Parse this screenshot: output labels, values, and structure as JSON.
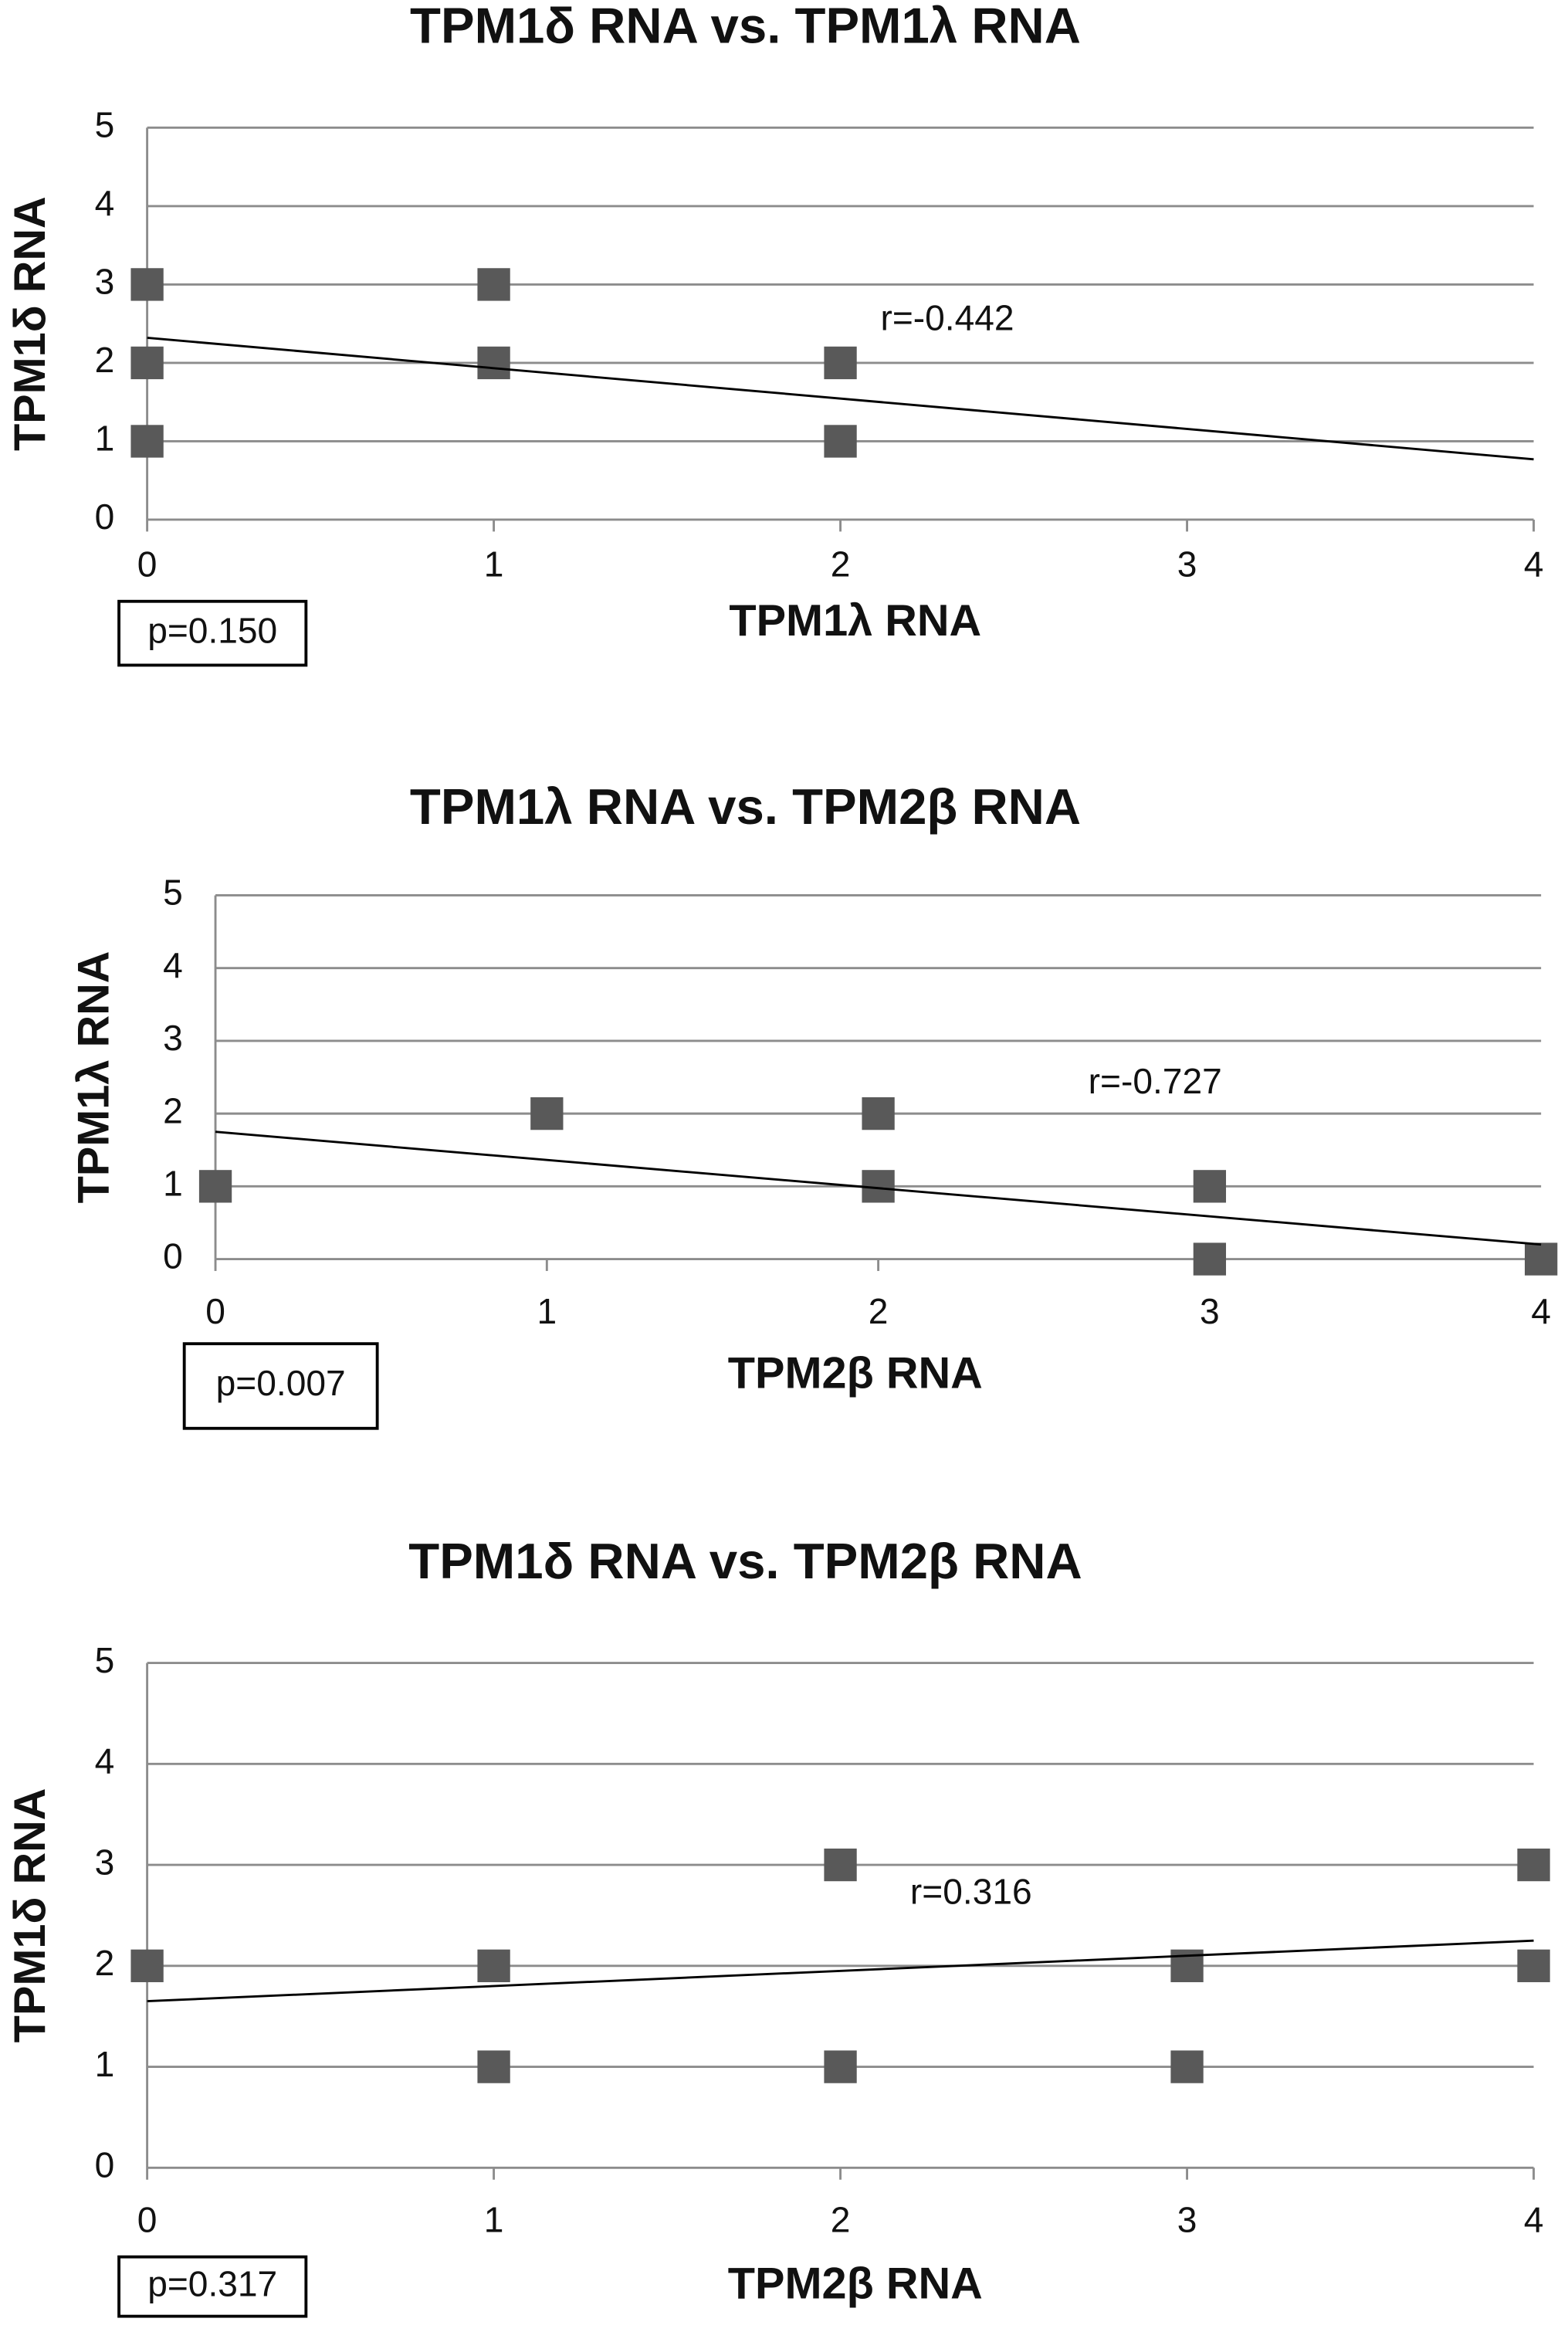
{
  "chart_data": [
    {
      "type": "scatter",
      "title": "TPM1δ RNA vs. TPM1λ RNA",
      "x_label": "TPM1λ RNA",
      "y_label": "TPM1δ RNA",
      "x": [
        0,
        0,
        0,
        1,
        1,
        2,
        2
      ],
      "y": [
        3,
        2,
        1,
        3,
        2,
        2,
        1
      ],
      "color": "#595959",
      "trendline": {
        "x": [
          0,
          4
        ],
        "y": [
          2.32,
          0.77
        ]
      },
      "annotations": [
        "r=-0.442",
        "p=0.150"
      ],
      "xlim": [
        0,
        4
      ],
      "xticks": [
        0,
        1,
        2,
        3,
        4
      ],
      "ylim": [
        0,
        5
      ],
      "yticks": [
        0,
        1,
        2,
        3,
        4,
        5
      ],
      "grid": true
    },
    {
      "type": "scatter",
      "title": "TPM1λ RNA vs. TPM2β RNA",
      "x_label": "TPM2β RNA",
      "y_label": "TPM1λ RNA",
      "x": [
        0,
        1,
        2,
        2,
        3,
        3,
        4
      ],
      "y": [
        1,
        2,
        2,
        1,
        1,
        0,
        0
      ],
      "color": "#595959",
      "trendline": {
        "x": [
          0,
          4
        ],
        "y": [
          1.75,
          0.2
        ]
      },
      "annotations": [
        "r=-0.727",
        "p=0.007"
      ],
      "xlim": [
        0,
        4
      ],
      "xticks": [
        0,
        1,
        2,
        3,
        4
      ],
      "ylim": [
        0,
        5
      ],
      "yticks": [
        0,
        1,
        2,
        3,
        4,
        5
      ],
      "grid": true
    },
    {
      "type": "scatter",
      "title": "TPM1δ RNA vs. TPM2β RNA",
      "x_label": "TPM2β RNA",
      "y_label": "TPM1δ RNA",
      "x": [
        0,
        1,
        1,
        2,
        2,
        3,
        3,
        4,
        4
      ],
      "y": [
        2,
        2,
        1,
        3,
        1,
        2,
        1,
        3,
        2
      ],
      "color": "#595959",
      "trendline": {
        "x": [
          0,
          4
        ],
        "y": [
          1.65,
          2.25
        ]
      },
      "annotations": [
        "r=0.316",
        "p=0.317"
      ],
      "xlim": [
        0,
        4
      ],
      "xticks": [
        0,
        1,
        2,
        3,
        4
      ],
      "ylim": [
        0,
        5
      ],
      "yticks": [
        0,
        1,
        2,
        3,
        4,
        5
      ],
      "grid": true
    }
  ]
}
